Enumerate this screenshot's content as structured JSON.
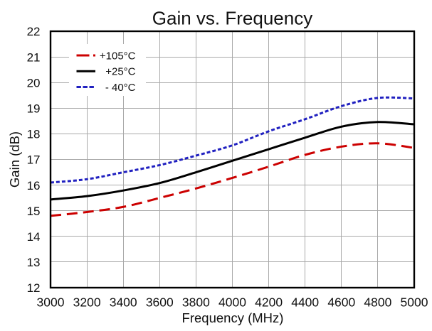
{
  "chart_data": {
    "type": "line",
    "title": "Gain vs. Frequency",
    "xlabel": "Frequency (MHz)",
    "ylabel": "Gain (dB)",
    "xlim": [
      3000,
      5000
    ],
    "ylim": [
      12,
      22
    ],
    "xticks": [
      3000,
      3200,
      3400,
      3600,
      3800,
      4000,
      4200,
      4400,
      4600,
      4800,
      5000
    ],
    "yticks": [
      12,
      13,
      14,
      15,
      16,
      17,
      18,
      19,
      20,
      21,
      22
    ],
    "grid": true,
    "grid_color": "#a9a9a9",
    "frame_color": "#000000",
    "legend_position": "top-left",
    "x": [
      3000,
      3200,
      3400,
      3600,
      3800,
      4000,
      4200,
      4400,
      4600,
      4800,
      5000
    ],
    "series": [
      {
        "name": "+105°C",
        "color": "#cc0000",
        "line_style": "long-dash",
        "dash": [
          15,
          8
        ],
        "values": [
          14.8,
          14.95,
          15.15,
          15.5,
          15.87,
          16.28,
          16.72,
          17.18,
          17.5,
          17.63,
          17.45
        ]
      },
      {
        "name": "+25°C",
        "color": "#000000",
        "line_style": "solid",
        "dash": null,
        "values": [
          15.44,
          15.57,
          15.79,
          16.08,
          16.5,
          16.95,
          17.4,
          17.85,
          18.28,
          18.46,
          18.37
        ]
      },
      {
        "name": "- 40°C",
        "color": "#2020c0",
        "line_style": "short-dash",
        "dash": [
          5,
          3
        ],
        "values": [
          16.1,
          16.23,
          16.5,
          16.78,
          17.15,
          17.55,
          18.1,
          18.57,
          19.08,
          19.4,
          19.38
        ]
      }
    ]
  }
}
